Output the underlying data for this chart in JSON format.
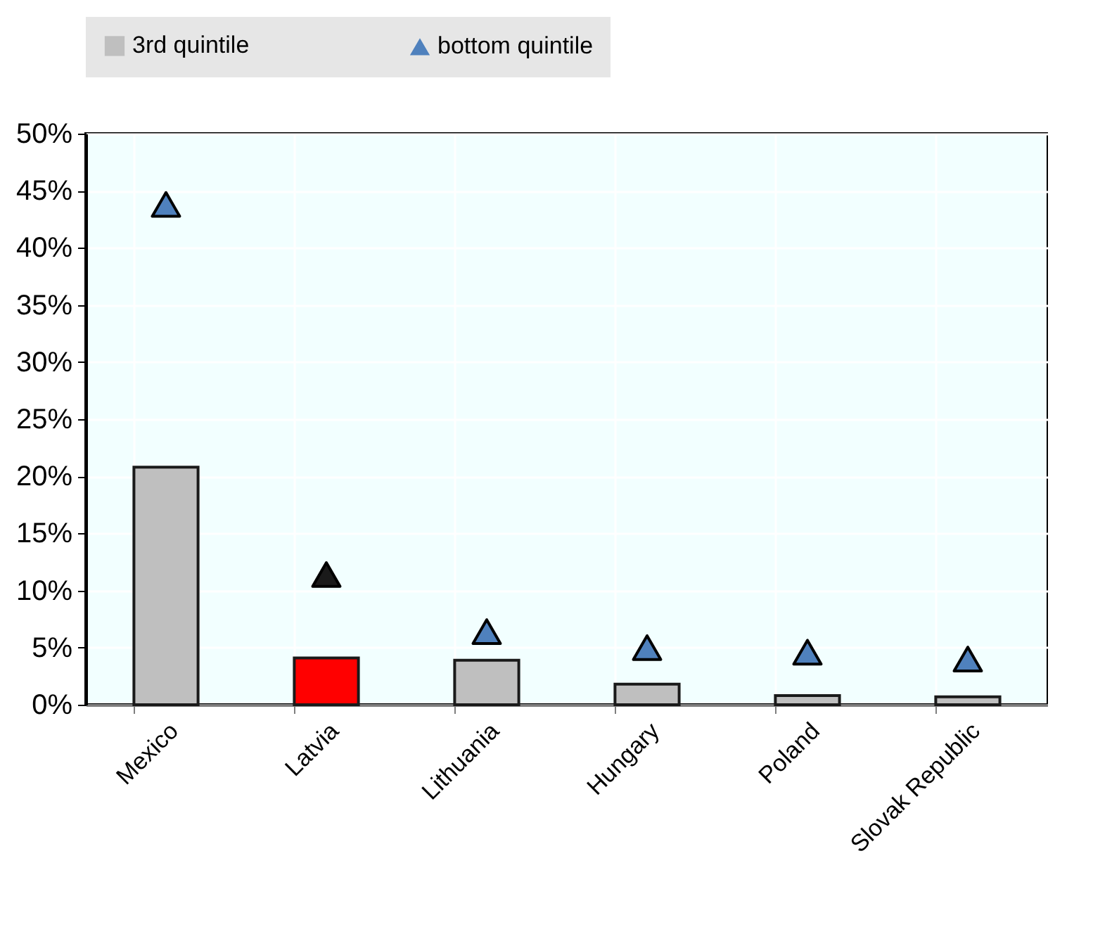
{
  "chart_data": {
    "type": "bar",
    "categories": [
      "Mexico",
      "Latvia",
      "Lithuania",
      "Hungary",
      "Poland",
      "Slovak Republic"
    ],
    "series": [
      {
        "name": "3rd quintile",
        "color": "#bfbfbf",
        "colors": [
          "#bfbfbf",
          "#ff0000",
          "#bfbfbf",
          "#bfbfbf",
          "#bfbfbf",
          "#bfbfbf"
        ],
        "values": [
          20.8,
          4.1,
          3.9,
          1.8,
          0.8,
          0.7
        ]
      },
      {
        "name": "bottom quintile",
        "type": "scatter",
        "marker": "triangle",
        "color": "#4f81bd",
        "colors": [
          "#4f81bd",
          "#1a1a1a",
          "#4f81bd",
          "#4f81bd",
          "#4f81bd",
          "#4f81bd"
        ],
        "values": [
          43.8,
          11.4,
          6.4,
          5.0,
          4.6,
          4.0
        ]
      }
    ],
    "ylim": [
      0,
      50
    ],
    "yticks": [
      {
        "value": 0,
        "label": "0%"
      },
      {
        "value": 5,
        "label": "5%"
      },
      {
        "value": 10,
        "label": "10%"
      },
      {
        "value": 15,
        "label": "15%"
      },
      {
        "value": 20,
        "label": "20%"
      },
      {
        "value": 25,
        "label": "25%"
      },
      {
        "value": 30,
        "label": "30%"
      },
      {
        "value": 35,
        "label": "35%"
      },
      {
        "value": 40,
        "label": "40%"
      },
      {
        "value": 45,
        "label": "45%"
      },
      {
        "value": 50,
        "label": "50%"
      }
    ],
    "grid": true,
    "legend": "top"
  }
}
